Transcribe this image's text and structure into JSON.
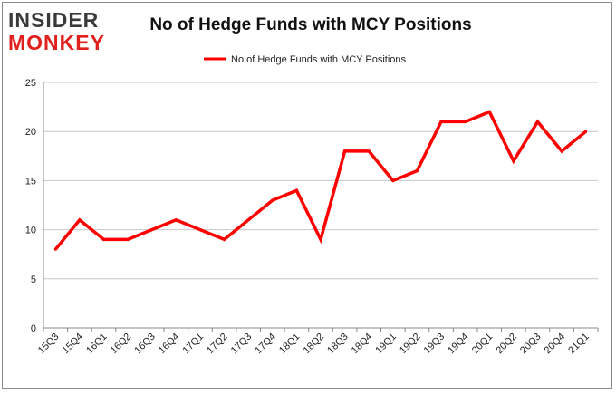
{
  "logo": {
    "line1": "INSIDER",
    "line2": "MONKEY"
  },
  "chart_data": {
    "type": "line",
    "title": "No of Hedge Funds with MCY Positions",
    "xlabel": "",
    "ylabel": "",
    "categories": [
      "15Q3",
      "15Q4",
      "16Q1",
      "16Q2",
      "16Q3",
      "16Q4",
      "17Q1",
      "17Q2",
      "17Q3",
      "17Q4",
      "18Q1",
      "18Q2",
      "18Q3",
      "18Q4",
      "19Q1",
      "19Q2",
      "19Q3",
      "19Q4",
      "20Q1",
      "20Q2",
      "20Q3",
      "20Q4",
      "21Q1"
    ],
    "series": [
      {
        "name": "No of Hedge Funds with MCY Positions",
        "color": "#ff0000",
        "values": [
          8,
          11,
          9,
          9,
          10,
          11,
          10,
          9,
          11,
          13,
          14,
          9,
          18,
          18,
          15,
          16,
          21,
          21,
          22,
          17,
          21,
          18,
          20
        ]
      }
    ],
    "ylim": [
      0,
      25
    ],
    "yticks": [
      0,
      5,
      10,
      15,
      20,
      25
    ],
    "grid": true,
    "legend": "top-center"
  }
}
